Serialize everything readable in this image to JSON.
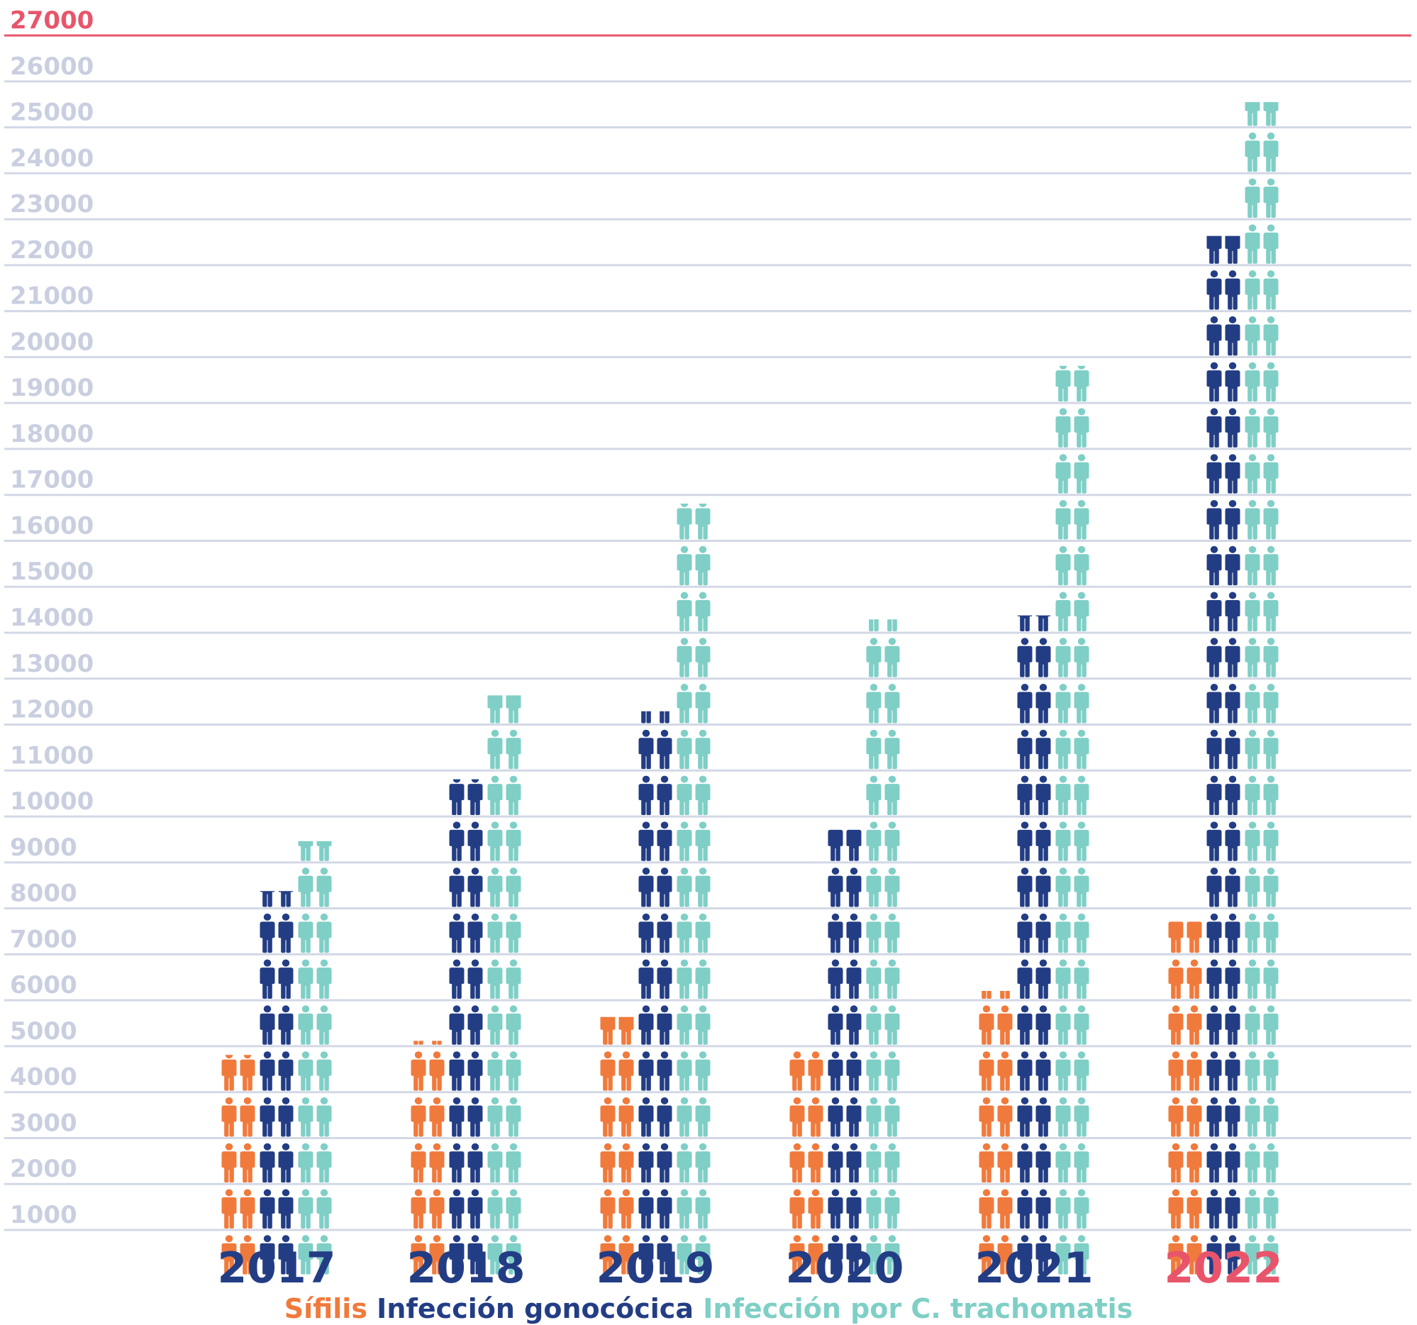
{
  "chart_data": {
    "type": "bar",
    "style": "pictogram-stacked-columns",
    "unit_per_icon_row": 1000,
    "categories": [
      "2017",
      "2018",
      "2019",
      "2020",
      "2021",
      "2022"
    ],
    "highlight_category": "2022",
    "ylim": [
      1000,
      27000
    ],
    "y_ticks": [
      1000,
      2000,
      3000,
      4000,
      5000,
      6000,
      7000,
      8000,
      9000,
      10000,
      11000,
      12000,
      13000,
      14000,
      15000,
      16000,
      17000,
      18000,
      19000,
      20000,
      21000,
      22000,
      23000,
      24000,
      25000,
      26000,
      27000
    ],
    "grid": true,
    "legend_position": "bottom-center",
    "series": [
      {
        "name": "Sífilis",
        "color": "#f07a3c",
        "values": [
          4900,
          5100,
          5700,
          5000,
          6200,
          7800
        ]
      },
      {
        "name": "Infección gonocócica",
        "color": "#233d85",
        "values": [
          8400,
          10900,
          12300,
          9800,
          14400,
          22700
        ]
      },
      {
        "name": "Infección por C. trachomatis",
        "color": "#7fcfc6",
        "values": [
          9500,
          12700,
          16900,
          14300,
          19900,
          25600
        ]
      }
    ],
    "colors": {
      "axis_text": "#c9cfe0",
      "grid": "#d3d8e6",
      "top_line": "#e8556b",
      "category_text": "#233d85",
      "highlight": "#e8556b"
    }
  }
}
